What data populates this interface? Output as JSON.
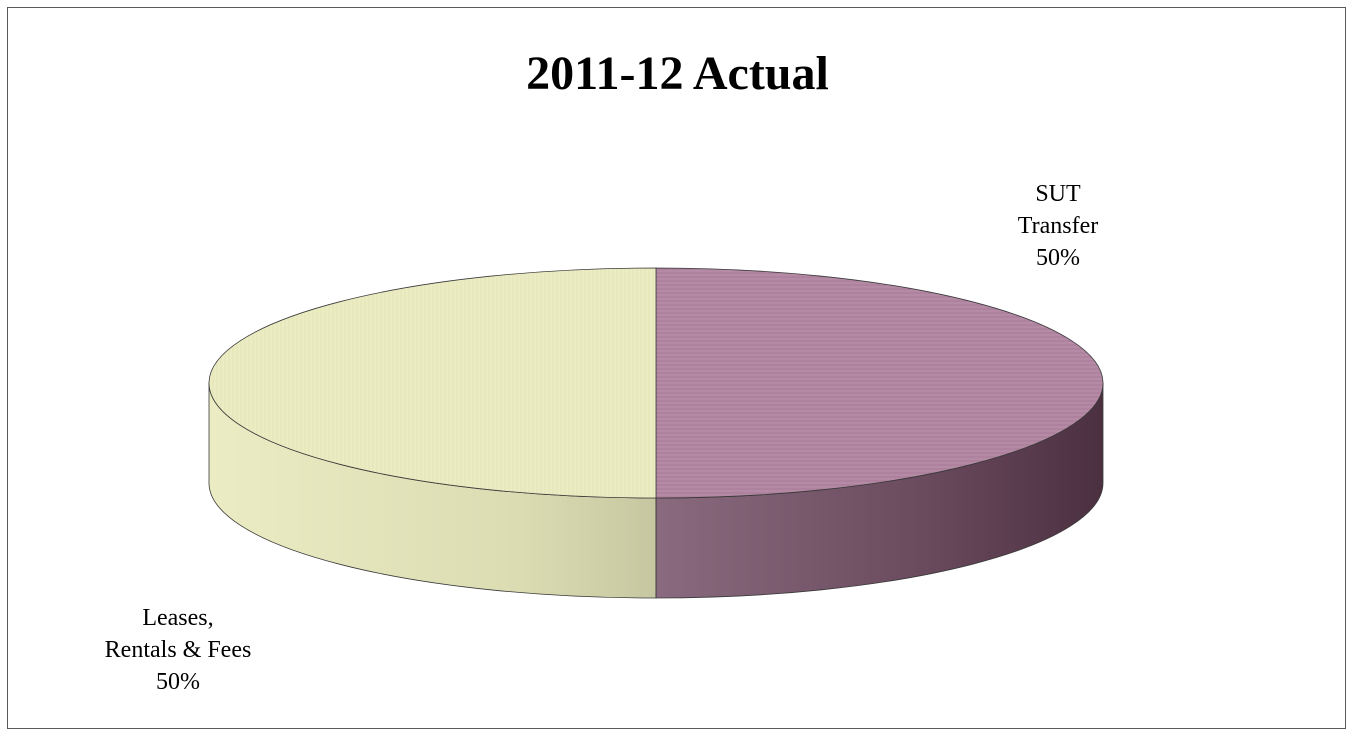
{
  "chart_data": {
    "type": "pie",
    "title": "2011-12 Actual",
    "slices": [
      {
        "label_lines": [
          "SUT",
          "Transfer"
        ],
        "percent_label": "50%",
        "value": 50,
        "color": "#b58aa5",
        "side_color": "#5e3f52"
      },
      {
        "label_lines": [
          "Leases,",
          "Rentals & Fees"
        ],
        "percent_label": "50%",
        "value": 50,
        "color": "#ececc4",
        "side_color": "#d6d6ad"
      }
    ],
    "legend": "none"
  }
}
